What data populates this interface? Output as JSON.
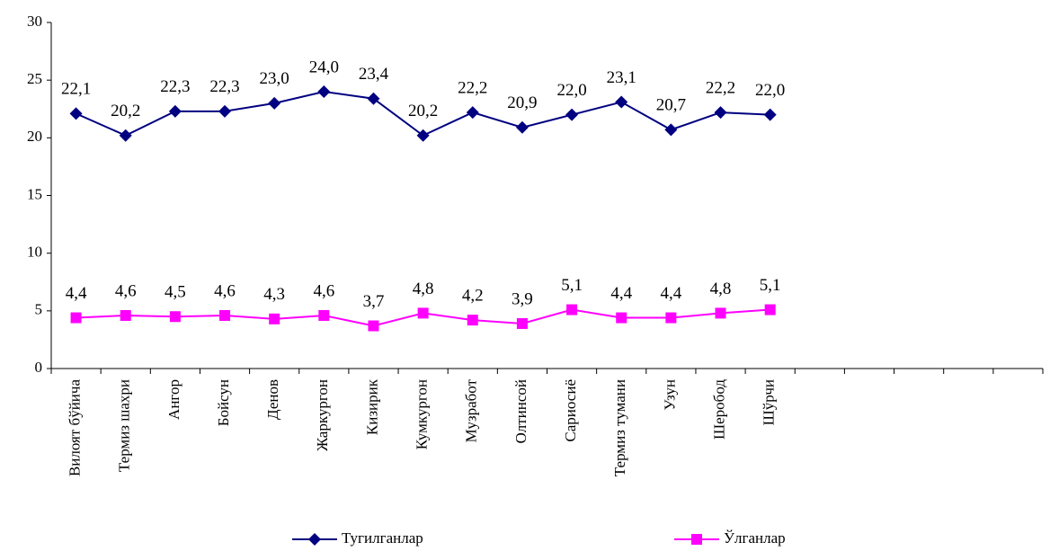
{
  "chart_data": {
    "type": "line",
    "categories": [
      "Вилоят бўйича",
      "Термиз шахри",
      "Ангор",
      "Бойсун",
      "Денов",
      "Жаркургон",
      "Кизирик",
      "Кумкургон",
      "Музработ",
      "Олтинсой",
      "Сариосиё",
      "Термиз тумани",
      "Узун",
      "Шеробод",
      "Шўрчи",
      null,
      null,
      null,
      null,
      null
    ],
    "series": [
      {
        "name": "Тугилганлар",
        "color": "#000080",
        "marker": "diamond",
        "values": [
          22.1,
          20.2,
          22.3,
          22.3,
          23.0,
          24.0,
          23.4,
          20.2,
          22.2,
          20.9,
          22.0,
          23.1,
          20.7,
          22.2,
          22.0,
          null,
          null,
          null,
          null,
          null
        ],
        "value_labels": [
          "22,1",
          "20,2",
          "22,3",
          "22,3",
          "23,0",
          "24,0",
          "23,4",
          "20,2",
          "22,2",
          "20,9",
          "22,0",
          "23,1",
          "20,7",
          "22,2",
          "22,0",
          null,
          null,
          null,
          null,
          null
        ]
      },
      {
        "name": "Ўлганлар",
        "color": "#ff00ff",
        "marker": "square",
        "values": [
          4.4,
          4.6,
          4.5,
          4.6,
          4.3,
          4.6,
          3.7,
          4.8,
          4.2,
          3.9,
          5.1,
          4.4,
          4.4,
          4.8,
          5.1,
          null,
          null,
          null,
          null,
          null
        ],
        "value_labels": [
          "4,4",
          "4,6",
          "4,5",
          "4,6",
          "4,3",
          "4,6",
          "3,7",
          "4,8",
          "4,2",
          "3,9",
          "5,1",
          "4,4",
          "4,4",
          "4,8",
          "5,1",
          null,
          null,
          null,
          null,
          null
        ]
      }
    ],
    "ylim": [
      0,
      30
    ],
    "yticks": [
      0,
      5,
      10,
      15,
      20,
      25,
      30
    ],
    "grid": false,
    "legend": "bottom"
  }
}
